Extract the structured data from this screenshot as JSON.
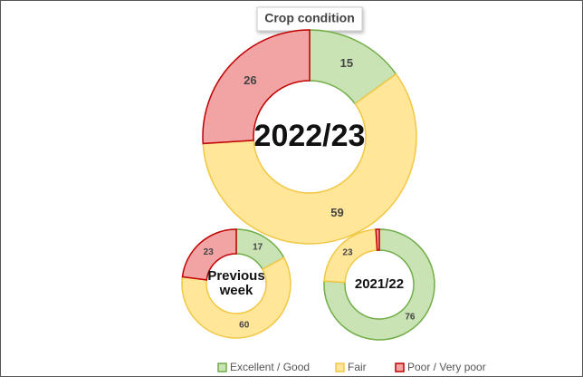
{
  "chart_data": {
    "type": "donut",
    "title": "Crop condition",
    "categories": [
      "Excellent / Good",
      "Fair",
      "Poor / Very poor"
    ],
    "colors": [
      "#c9e3b5",
      "#ffe699",
      "#f2a3a3"
    ],
    "strokes": [
      "#70ad47",
      "#f2c744",
      "#c00000"
    ],
    "series": [
      {
        "name": "2022/23",
        "values": [
          15,
          59,
          26
        ]
      },
      {
        "name": "Previous week",
        "values": [
          17,
          60,
          23
        ]
      },
      {
        "name": "2021/22",
        "values": [
          76,
          23,
          1
        ]
      }
    ]
  }
}
